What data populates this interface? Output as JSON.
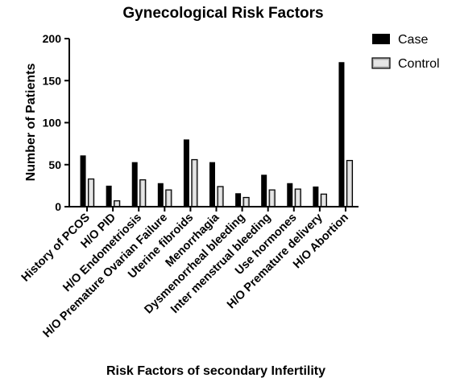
{
  "chart_data": {
    "type": "bar",
    "title": "Gynecological Risk Factors",
    "xlabel": "Risk Factors of secondary Infertility",
    "ylabel": "Number of Patients",
    "ylim": [
      0,
      200
    ],
    "yticks": [
      "0",
      "50",
      "100",
      "150",
      "200"
    ],
    "categories": [
      "History of PCOS",
      "H/O PID",
      "H/O Endometriosis",
      "H/O Premature Ovarian Failure",
      "Uterine fibroids",
      "Menorrhagia",
      "Dysmenorrheal bleeding",
      "Inter menstrual bleeding",
      "Use hormones",
      "H/O Premature delivery",
      "H/O Abortion"
    ],
    "series": [
      {
        "name": "Case",
        "color": "#000000",
        "values": [
          61,
          25,
          53,
          28,
          80,
          53,
          16,
          38,
          28,
          24,
          172
        ]
      },
      {
        "name": "Control",
        "color": "#8c8c8c",
        "values": [
          33,
          7,
          32,
          20,
          56,
          24,
          11,
          20,
          21,
          15,
          55
        ]
      }
    ],
    "legend_position": "top-right",
    "grid": false
  }
}
